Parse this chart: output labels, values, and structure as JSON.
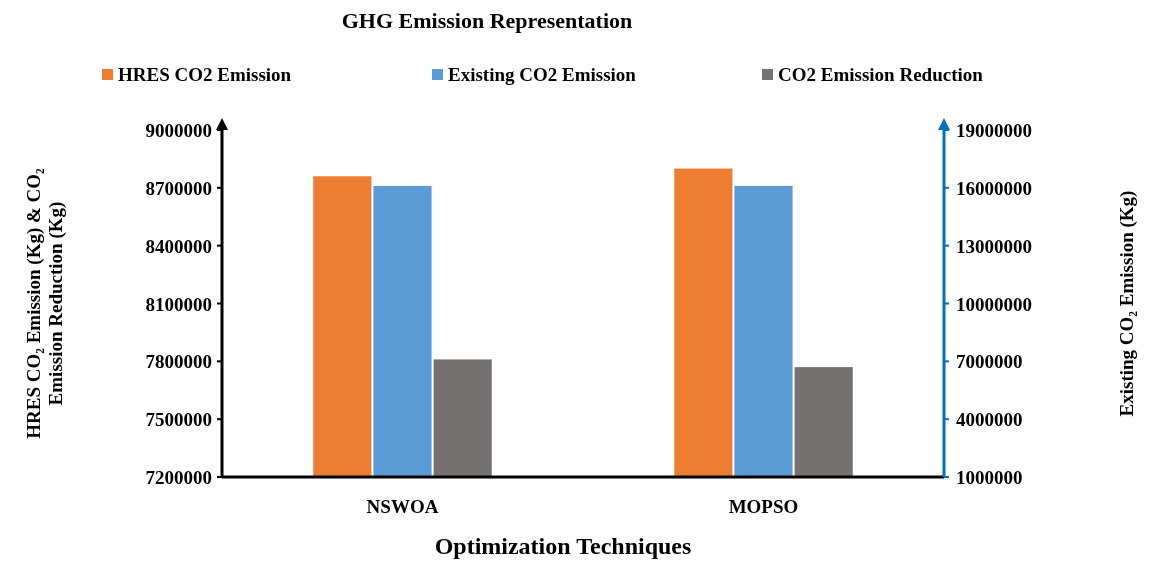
{
  "chart_data": {
    "type": "bar",
    "title": "GHG Emission Representation",
    "xlabel": "Optimization Techniques",
    "ylabel": "HRES CO₂ Emission (Kg)  & CO₂ Emission Reduction (Kg)",
    "y2label": "Existing CO₂ Emission (Kg)",
    "categories": [
      "NSWOA",
      "MOPSO"
    ],
    "series": [
      {
        "name": "HRES CO2 Emission",
        "color": "#ed7d31",
        "values": [
          8760000,
          8800000
        ]
      },
      {
        "name": "Existing CO2 Emission",
        "color": "#5b9bd5",
        "values": [
          16100000,
          16100000
        ],
        "axis": "y2"
      },
      {
        "name": "CO2 Emission Reduction",
        "color": "#767171",
        "values": [
          7810000,
          7770000
        ]
      }
    ],
    "ylim": [
      7200000,
      9000000
    ],
    "yticks": [
      7200000,
      7500000,
      7800000,
      8100000,
      8400000,
      8700000,
      9000000
    ],
    "y2lim": [
      1000000,
      19000000
    ],
    "y2ticks": [
      1000000,
      4000000,
      7000000,
      10000000,
      13000000,
      16000000,
      19000000
    ],
    "grid": false,
    "legend": "top"
  }
}
